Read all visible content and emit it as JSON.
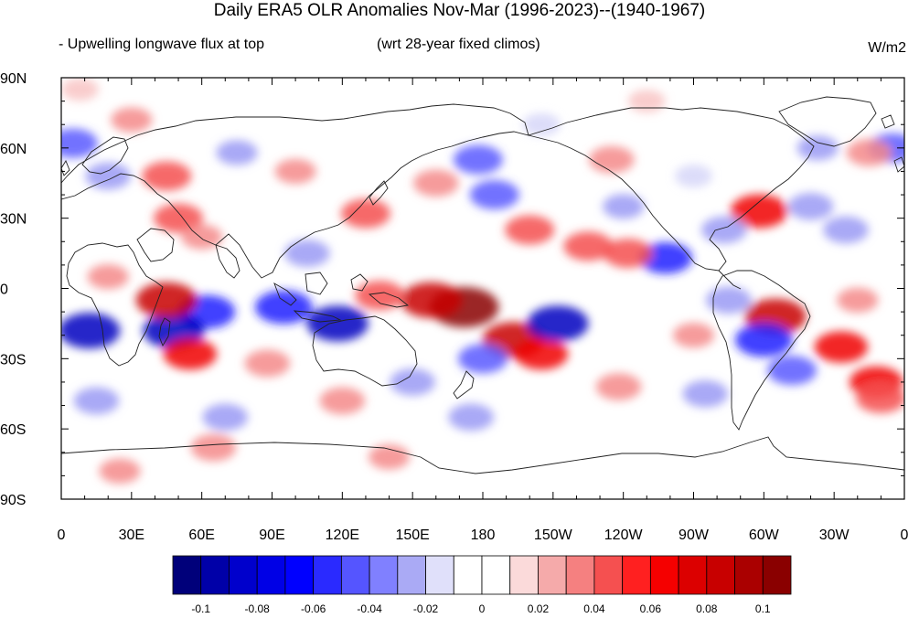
{
  "title": "Daily ERA5 OLR Anomalies Nov-Mar (1996-2023)--(1940-1967)",
  "subtitle_left": "- Upwelling longwave flux at top",
  "subtitle_center": "(wrt 28-year fixed climos)",
  "units": "W/m2",
  "lat_labels": [
    "90N",
    "60N",
    "30N",
    "0",
    "30S",
    "60S",
    "90S"
  ],
  "lon_labels": [
    "0",
    "30E",
    "60E",
    "90E",
    "120E",
    "150E",
    "180",
    "150W",
    "120W",
    "90W",
    "60W",
    "30W",
    "0"
  ],
  "colorbar": {
    "colors": [
      "#00007a",
      "#0000a8",
      "#0000cc",
      "#0000e6",
      "#0000ff",
      "#2a2aff",
      "#5555ff",
      "#8080ff",
      "#aaaaf5",
      "#e0e0fa",
      "#ffffff",
      "#ffffff",
      "#fbdada",
      "#f5aaaa",
      "#f58080",
      "#f55050",
      "#ff2020",
      "#f50000",
      "#dc0000",
      "#c80000",
      "#aa0000",
      "#8a0000"
    ],
    "labels": [
      "-0.1",
      "-0.08",
      "-0.06",
      "-0.04",
      "-0.02",
      "0",
      "0.02",
      "0.04",
      "0.06",
      "0.08",
      "0.1"
    ]
  },
  "anomaly_features": [
    {
      "lon": 172,
      "lat": -8,
      "value": 0.1
    },
    {
      "lon": 193,
      "lat": -22,
      "value": 0.08
    },
    {
      "lon": 158,
      "lat": -5,
      "value": 0.08
    },
    {
      "lon": 205,
      "lat": -28,
      "value": 0.06
    },
    {
      "lon": 136,
      "lat": -3,
      "value": 0.05
    },
    {
      "lon": 118,
      "lat": -15,
      "value": -0.08
    },
    {
      "lon": 95,
      "lat": -8,
      "value": -0.07
    },
    {
      "lon": 62,
      "lat": -10,
      "value": -0.07
    },
    {
      "lon": 48,
      "lat": -18,
      "value": -0.08
    },
    {
      "lon": 12,
      "lat": -18,
      "value": -0.08
    },
    {
      "lon": 212,
      "lat": -15,
      "value": -0.08
    },
    {
      "lon": 180,
      "lat": -30,
      "value": -0.05
    },
    {
      "lon": 45,
      "lat": -5,
      "value": 0.08
    },
    {
      "lon": 55,
      "lat": -28,
      "value": 0.06
    },
    {
      "lon": 305,
      "lat": -12,
      "value": 0.08
    },
    {
      "lon": 333,
      "lat": -25,
      "value": 0.06
    },
    {
      "lon": 348,
      "lat": -40,
      "value": 0.06
    },
    {
      "lon": 300,
      "lat": -22,
      "value": -0.07
    },
    {
      "lon": 312,
      "lat": -35,
      "value": -0.05
    },
    {
      "lon": 298,
      "lat": 33,
      "value": 0.07
    },
    {
      "lon": 258,
      "lat": 13,
      "value": -0.06
    },
    {
      "lon": 225,
      "lat": 18,
      "value": 0.05
    },
    {
      "lon": 242,
      "lat": 15,
      "value": 0.05
    },
    {
      "lon": 160,
      "lat": 45,
      "value": 0.04
    },
    {
      "lon": 178,
      "lat": 55,
      "value": -0.05
    },
    {
      "lon": 185,
      "lat": 40,
      "value": -0.05
    },
    {
      "lon": 200,
      "lat": 25,
      "value": 0.05
    },
    {
      "lon": 355,
      "lat": 60,
      "value": -0.05
    },
    {
      "lon": 5,
      "lat": 62,
      "value": -0.05
    },
    {
      "lon": 20,
      "lat": 48,
      "value": -0.04
    },
    {
      "lon": 45,
      "lat": 48,
      "value": 0.05
    },
    {
      "lon": 50,
      "lat": 30,
      "value": 0.05
    },
    {
      "lon": 130,
      "lat": 32,
      "value": 0.05
    },
    {
      "lon": 235,
      "lat": 55,
      "value": 0.04
    },
    {
      "lon": 320,
      "lat": 35,
      "value": -0.04
    },
    {
      "lon": 323,
      "lat": 60,
      "value": -0.03
    },
    {
      "lon": 345,
      "lat": 58,
      "value": 0.04
    },
    {
      "lon": 15,
      "lat": -48,
      "value": -0.04
    },
    {
      "lon": 70,
      "lat": -55,
      "value": -0.04
    },
    {
      "lon": 120,
      "lat": -48,
      "value": 0.04
    },
    {
      "lon": 150,
      "lat": -40,
      "value": -0.04
    },
    {
      "lon": 175,
      "lat": -55,
      "value": -0.04
    },
    {
      "lon": 238,
      "lat": -42,
      "value": 0.04
    },
    {
      "lon": 275,
      "lat": -45,
      "value": -0.04
    },
    {
      "lon": 270,
      "lat": -20,
      "value": 0.03
    },
    {
      "lon": 285,
      "lat": -5,
      "value": -0.04
    },
    {
      "lon": 88,
      "lat": -32,
      "value": 0.04
    },
    {
      "lon": 20,
      "lat": 5,
      "value": 0.03
    },
    {
      "lon": 340,
      "lat": -5,
      "value": 0.03
    },
    {
      "lon": 350,
      "lat": -47,
      "value": 0.05
    },
    {
      "lon": 60,
      "lat": 22,
      "value": 0.03
    },
    {
      "lon": 105,
      "lat": 15,
      "value": -0.04
    },
    {
      "lon": 240,
      "lat": 35,
      "value": -0.03
    },
    {
      "lon": 283,
      "lat": 25,
      "value": -0.04
    },
    {
      "lon": 335,
      "lat": 25,
      "value": -0.04
    },
    {
      "lon": 270,
      "lat": 48,
      "value": -0.02
    },
    {
      "lon": 100,
      "lat": 50,
      "value": 0.03
    },
    {
      "lon": 75,
      "lat": 58,
      "value": -0.03
    },
    {
      "lon": 30,
      "lat": 72,
      "value": 0.03
    },
    {
      "lon": 205,
      "lat": 70,
      "value": -0.02
    },
    {
      "lon": 65,
      "lat": -68,
      "value": 0.04
    },
    {
      "lon": 25,
      "lat": -78,
      "value": 0.03
    },
    {
      "lon": 140,
      "lat": -72,
      "value": 0.03
    },
    {
      "lon": 8,
      "lat": 85,
      "value": 0.02
    },
    {
      "lon": 250,
      "lat": 80,
      "value": 0.02
    }
  ]
}
